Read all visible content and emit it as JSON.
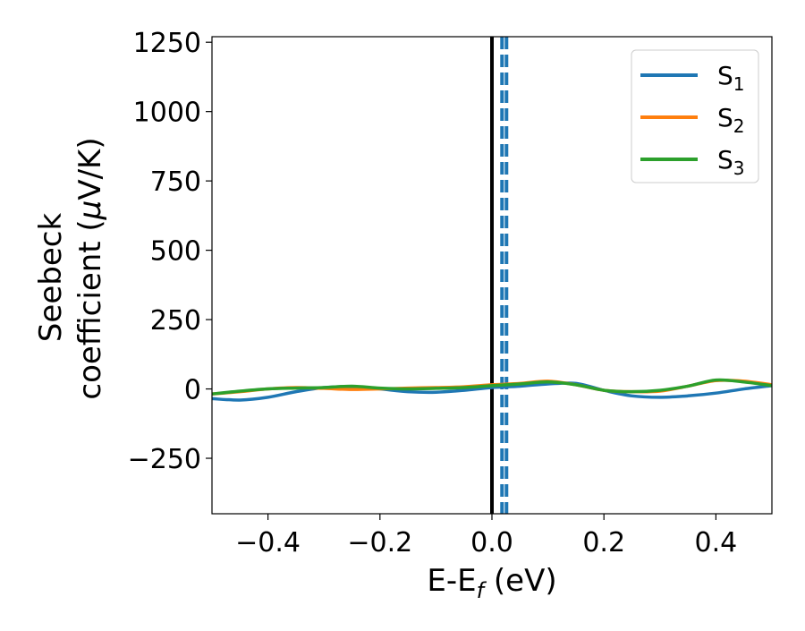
{
  "chart_data": {
    "type": "line",
    "xlabel": {
      "main": "E-E",
      "sub": "f",
      "tail": " (eV)"
    },
    "ylabel": {
      "line1": "Seebeck",
      "line2": "coefficient  (",
      "mu": "μ",
      "line2_tail": "V/K)"
    },
    "xlim": [
      -0.5,
      0.5
    ],
    "ylim": [
      -450,
      1270
    ],
    "xticks": [
      -0.4,
      -0.2,
      0.0,
      0.2,
      0.4
    ],
    "xtick_labels": [
      "−0.4",
      "−0.2",
      "0.0",
      "0.2",
      "0.4"
    ],
    "yticks": [
      -250,
      0,
      250,
      500,
      750,
      1000,
      1250
    ],
    "ytick_labels": [
      "−250",
      "0",
      "250",
      "500",
      "750",
      "1000",
      "1250"
    ],
    "legend_position": "top-right",
    "fermi_line_x": 0.0,
    "dashed_vlines": [
      {
        "x": 0.018,
        "color": "#1f77b4"
      },
      {
        "x": 0.026,
        "color": "#1f77b4"
      }
    ],
    "series": [
      {
        "name": "S",
        "sub": "1",
        "color": "#1f77b4",
        "x": [
          -0.5,
          -0.45,
          -0.4,
          -0.35,
          -0.3,
          -0.25,
          -0.2,
          -0.15,
          -0.1,
          -0.05,
          0.0,
          0.05,
          0.1,
          0.15,
          0.2,
          0.25,
          0.3,
          0.35,
          0.4,
          0.45,
          0.5
        ],
        "y": [
          -35,
          -40,
          -30,
          -10,
          5,
          8,
          0,
          -10,
          -12,
          -5,
          5,
          10,
          18,
          20,
          -5,
          -25,
          -30,
          -25,
          -15,
          0,
          12
        ]
      },
      {
        "name": "S",
        "sub": "2",
        "color": "#ff7f0e",
        "x": [
          -0.5,
          -0.45,
          -0.4,
          -0.35,
          -0.3,
          -0.25,
          -0.2,
          -0.15,
          -0.1,
          -0.05,
          0.0,
          0.05,
          0.1,
          0.15,
          0.2,
          0.25,
          0.3,
          0.35,
          0.4,
          0.45,
          0.5
        ],
        "y": [
          -18,
          -10,
          0,
          5,
          2,
          -2,
          0,
          3,
          5,
          8,
          15,
          20,
          28,
          15,
          -5,
          -10,
          -8,
          10,
          30,
          28,
          15
        ]
      },
      {
        "name": "S",
        "sub": "3",
        "color": "#2ca02c",
        "x": [
          -0.5,
          -0.45,
          -0.4,
          -0.35,
          -0.3,
          -0.25,
          -0.2,
          -0.15,
          -0.1,
          -0.05,
          0.0,
          0.05,
          0.1,
          0.15,
          0.2,
          0.25,
          0.3,
          0.35,
          0.4,
          0.45,
          0.5
        ],
        "y": [
          -18,
          -8,
          0,
          3,
          5,
          10,
          3,
          0,
          2,
          5,
          12,
          18,
          25,
          15,
          -5,
          -10,
          -5,
          10,
          32,
          25,
          12
        ]
      }
    ]
  }
}
